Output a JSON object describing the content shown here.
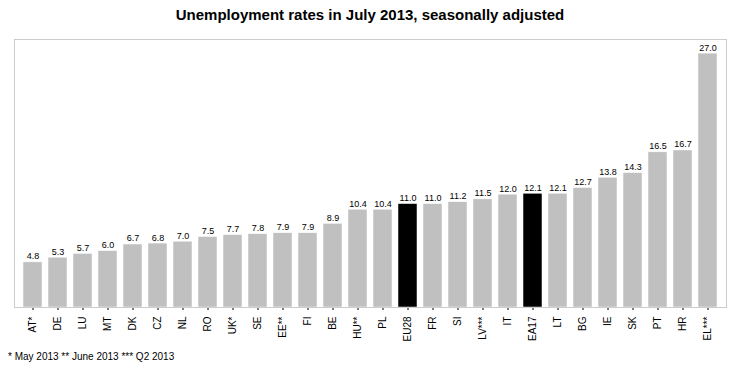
{
  "chart_data": {
    "type": "bar",
    "title": "Unemployment rates in July 2013, seasonally adjusted",
    "footnote": "*  May 2013    **  June 2013    ***  Q2 2013",
    "categories": [
      "AT*",
      "DE",
      "LU",
      "MT",
      "DK",
      "CZ",
      "NL",
      "RO",
      "UK*",
      "SE",
      "EE**",
      "FI",
      "BE",
      "HU**",
      "PL",
      "EU28",
      "FR",
      "SI",
      "LV***",
      "IT",
      "EA17",
      "LT",
      "BG",
      "IE",
      "SK",
      "PT",
      "HR",
      "EL***"
    ],
    "values": [
      4.8,
      5.3,
      5.7,
      6.0,
      6.7,
      6.8,
      7.0,
      7.5,
      7.7,
      7.8,
      7.9,
      7.9,
      8.9,
      10.4,
      10.4,
      11.0,
      11.0,
      11.2,
      11.5,
      12.0,
      12.1,
      12.1,
      12.7,
      13.8,
      14.3,
      16.5,
      16.7,
      27.0
    ],
    "value_labels": [
      "4.8",
      "5.3",
      "5.7",
      "6.0",
      "6.7",
      "6.8",
      "7.0",
      "7.5",
      "7.7",
      "7.8",
      "7.9",
      "7.9",
      "8.9",
      "10.4",
      "10.4",
      "11.0",
      "11.0",
      "11.2",
      "11.5",
      "12.0",
      "12.1",
      "12.1",
      "12.7",
      "13.8",
      "14.3",
      "16.5",
      "16.7",
      "27.0"
    ],
    "colors": [
      "#c0c0c0",
      "#c0c0c0",
      "#c0c0c0",
      "#c0c0c0",
      "#c0c0c0",
      "#c0c0c0",
      "#c0c0c0",
      "#c0c0c0",
      "#c0c0c0",
      "#c0c0c0",
      "#c0c0c0",
      "#c0c0c0",
      "#c0c0c0",
      "#c0c0c0",
      "#c0c0c0",
      "#000000",
      "#c0c0c0",
      "#c0c0c0",
      "#c0c0c0",
      "#c0c0c0",
      "#000000",
      "#c0c0c0",
      "#c0c0c0",
      "#c0c0c0",
      "#c0c0c0",
      "#c0c0c0",
      "#c0c0c0",
      "#c0c0c0"
    ],
    "ylim": [
      0,
      28.5
    ],
    "data_labels": true,
    "tick_labels": "x",
    "grid": false
  }
}
